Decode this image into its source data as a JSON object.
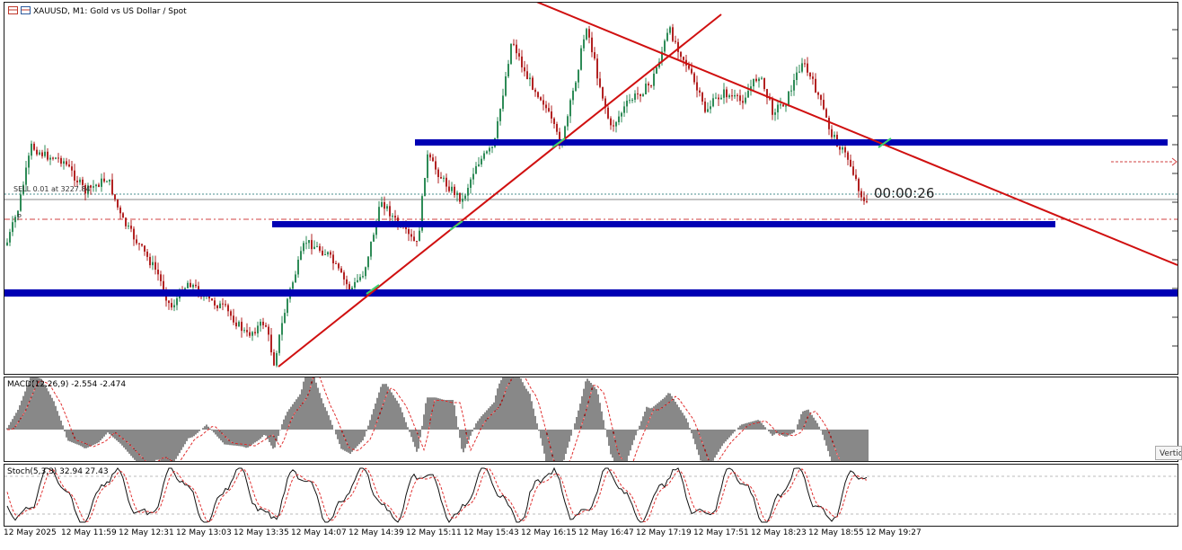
{
  "chart_header": {
    "symbol_title": "XAUUSD, M1:  Gold vs US Dollar / Spot"
  },
  "trade_line": {
    "label": "SELL 0.01 at 3227.84"
  },
  "marker_p": "P",
  "timer": "00:00:26",
  "macd": {
    "label": "MACD(12,26,9) -2.554 -2.474"
  },
  "stoch": {
    "label": "Stoch(5,3,3) 32.94 27.43"
  },
  "tooltip": "Vertic",
  "time_axis": [
    "12 May 2025",
    "12 May 11:59",
    "12 May 12:31",
    "12 May 13:03",
    "12 May 13:35",
    "12 May 14:07",
    "12 May 14:39",
    "12 May 15:11",
    "12 May 15:43",
    "12 May 16:15",
    "12 May 16:47",
    "12 May 17:19",
    "12 May 17:51",
    "12 May 18:23",
    "12 May 18:55",
    "12 May 19:27"
  ],
  "colors": {
    "bull": "#2e8b57",
    "bear": "#b22222",
    "level": "#0000b4",
    "trend": "#d01010",
    "signal": "#e03030"
  }
}
